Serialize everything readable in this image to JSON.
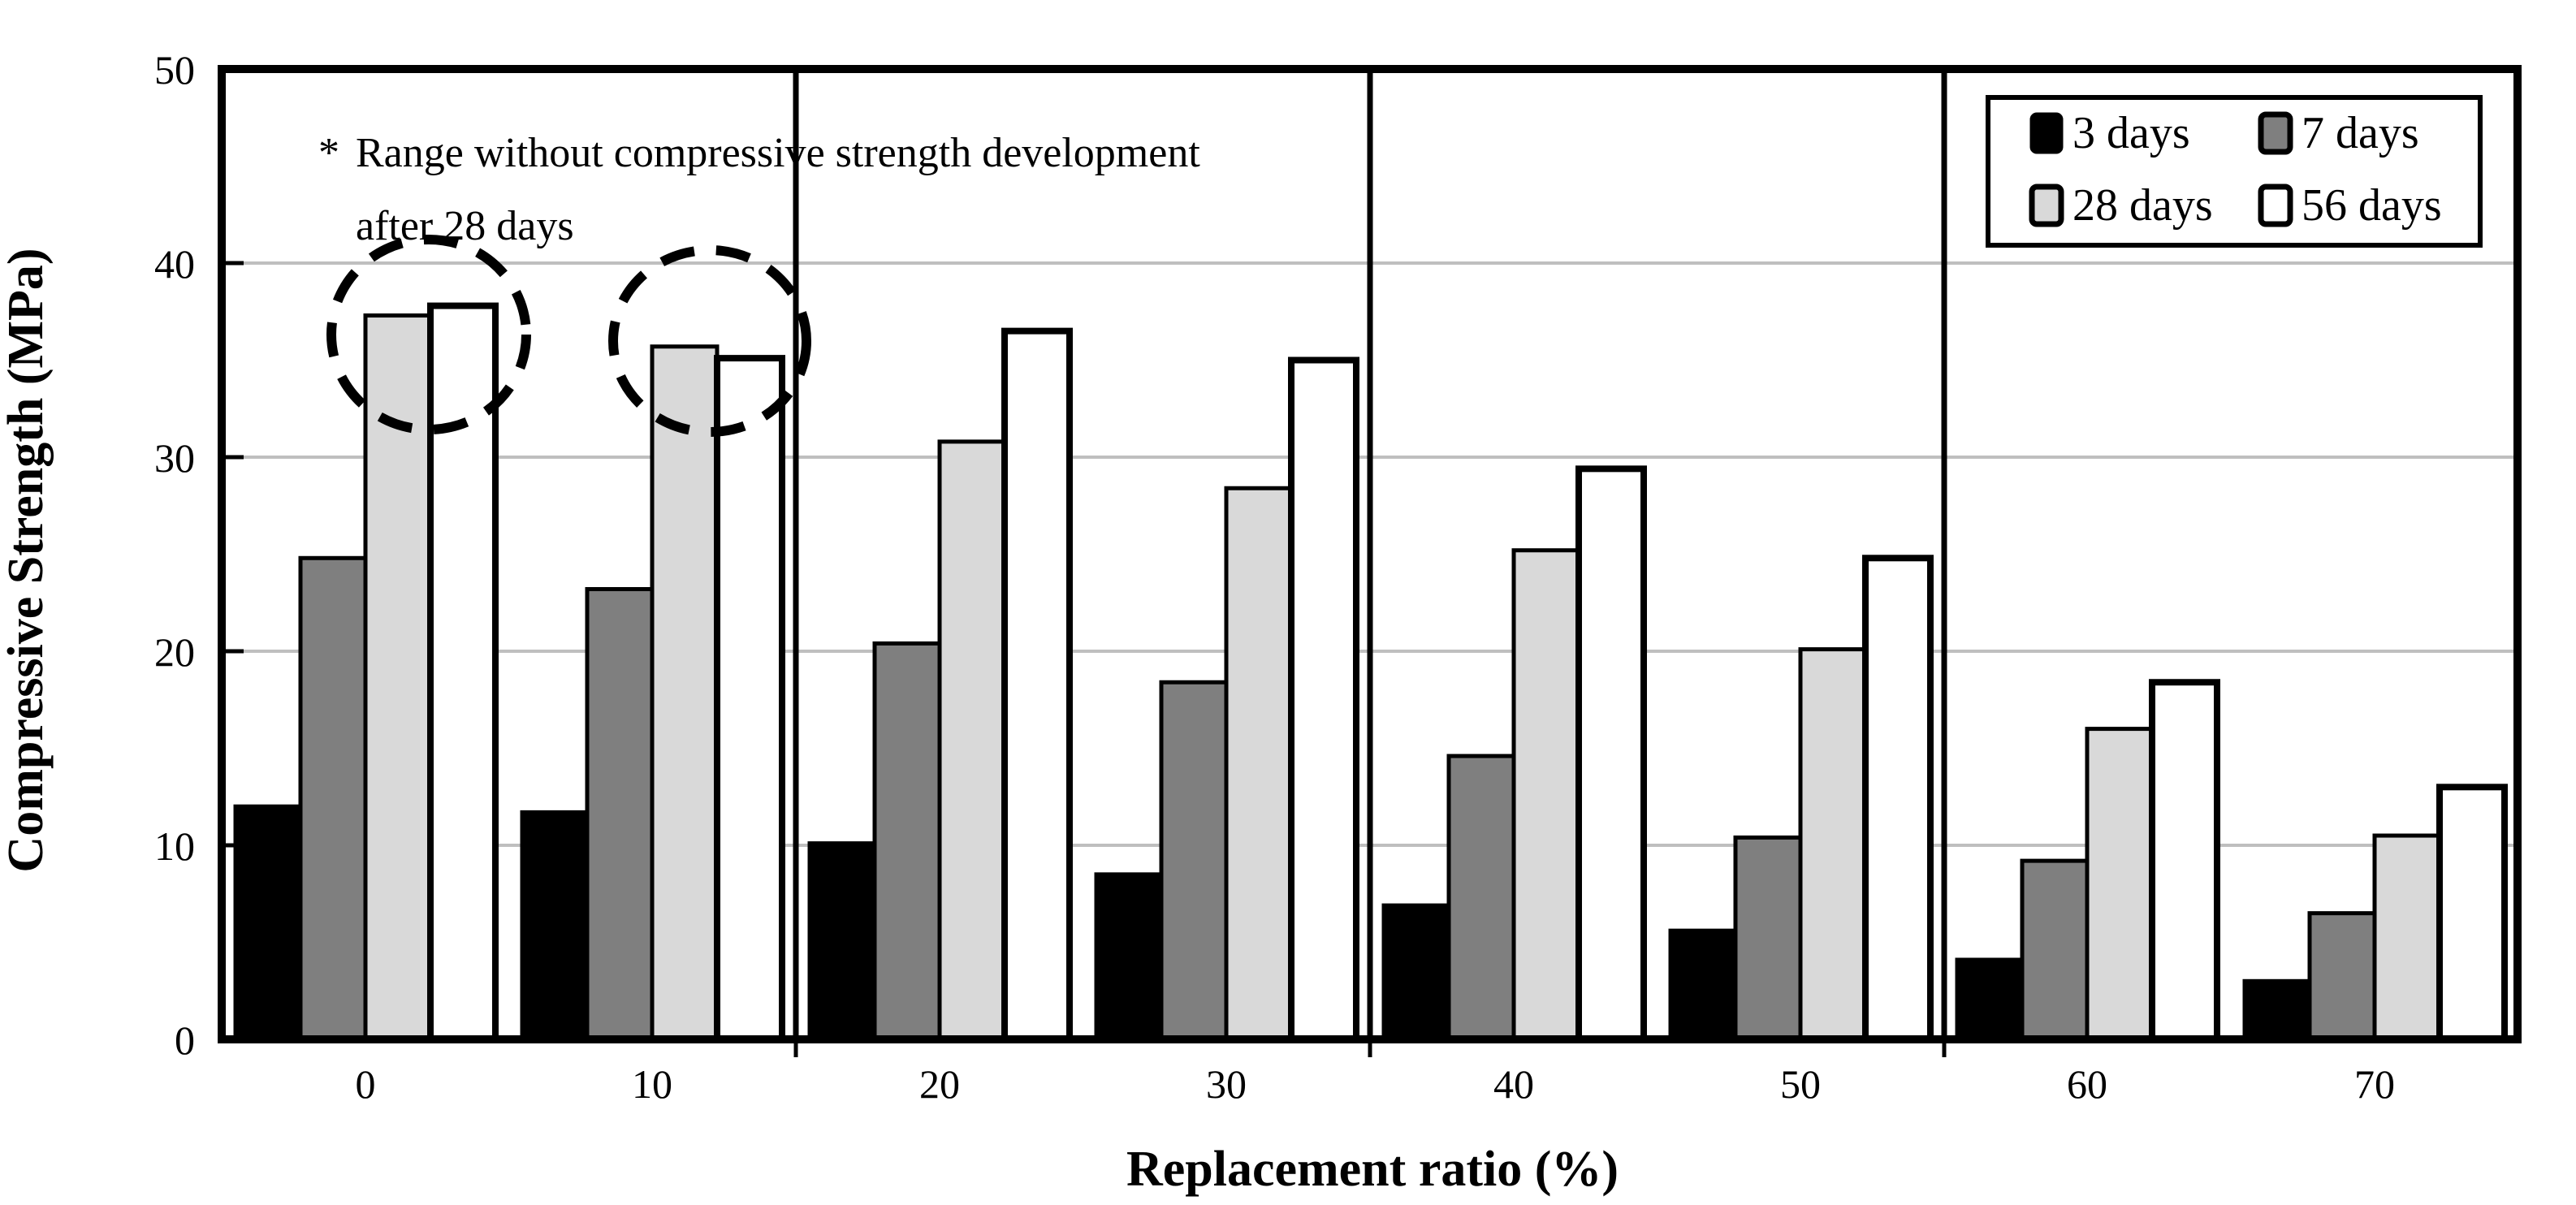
{
  "chart_data": {
    "type": "bar",
    "title": "",
    "xlabel": "Replacement ratio (%)",
    "ylabel": "Compressive Strength (MPa)",
    "categories": [
      "0",
      "10",
      "20",
      "30",
      "40",
      "50",
      "60",
      "70"
    ],
    "series": [
      {
        "name": "3 days",
        "color": "#000000",
        "values": [
          12.0,
          11.7,
          10.1,
          8.5,
          6.9,
          5.6,
          4.1,
          3.0
        ]
      },
      {
        "name": "7 days",
        "color": "#7f7f7f",
        "values": [
          24.8,
          23.2,
          20.4,
          18.4,
          14.6,
          10.4,
          9.2,
          6.5
        ]
      },
      {
        "name": "28 days",
        "color": "#d9d9d9",
        "values": [
          37.3,
          35.7,
          30.8,
          28.4,
          25.2,
          20.1,
          16.0,
          10.5
        ]
      },
      {
        "name": "56 days",
        "color": "#ffffff",
        "values": [
          37.8,
          35.1,
          36.5,
          35.0,
          29.4,
          24.8,
          18.4,
          13.0
        ]
      }
    ],
    "ylim": [
      0,
      50
    ],
    "y_ticks": [
      "0",
      "10",
      "20",
      "30",
      "40",
      "50"
    ],
    "grid": "horizontal",
    "gridline_color": "#bfbfbf",
    "bar_outline_color": "#000000",
    "legend_position": "top-right",
    "annotation": {
      "marker": "*",
      "line1": "Range  without  compressive  strength  development",
      "line2": "after 28 days",
      "circled_groups": [
        "0",
        "10"
      ]
    },
    "panel_dividers_after": [
      "10",
      "30",
      "50"
    ]
  }
}
